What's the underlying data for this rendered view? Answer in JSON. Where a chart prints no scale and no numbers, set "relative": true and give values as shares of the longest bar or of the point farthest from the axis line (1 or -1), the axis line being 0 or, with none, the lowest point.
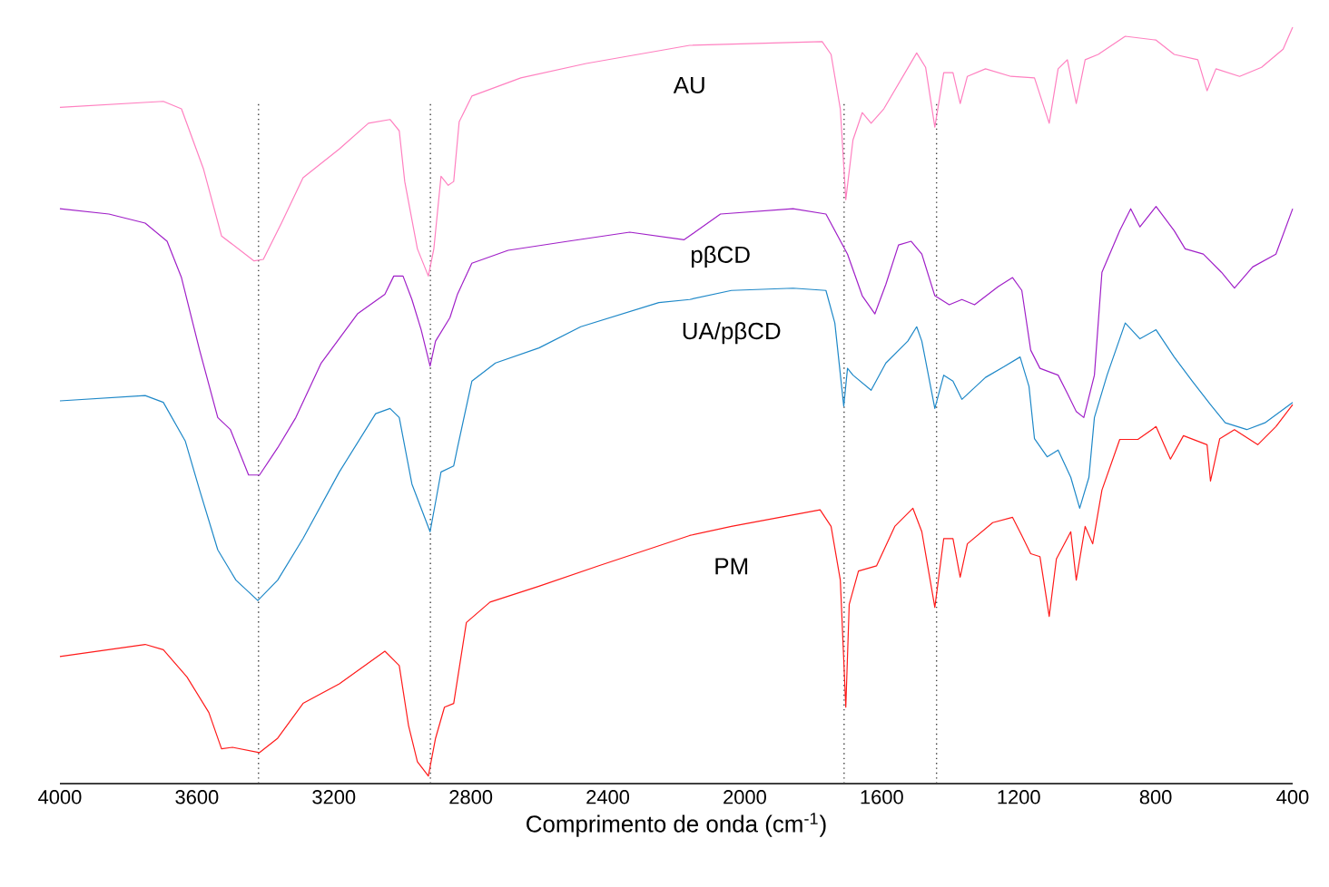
{
  "chart_data": {
    "type": "line",
    "relative": true,
    "xlabel": "Comprimento de onda (cm$^{-1}$)",
    "xlim": [
      4000,
      400
    ],
    "xticks": [
      4000,
      3600,
      3200,
      2800,
      2400,
      2000,
      1600,
      1200,
      800,
      400
    ],
    "grid": false,
    "legend": false,
    "marker": "none",
    "line_style": "solid",
    "ref_lines": [
      {
        "axis": "x",
        "value": 3420,
        "color": "#404040",
        "line_style": "dotted"
      },
      {
        "axis": "x",
        "value": 2918,
        "color": "#404040",
        "line_style": "dotted"
      },
      {
        "axis": "x",
        "value": 1710,
        "color": "#404040",
        "line_style": "dotted"
      },
      {
        "axis": "x",
        "value": 1440,
        "color": "#404040",
        "line_style": "dotted"
      }
    ],
    "series": [
      {
        "name": "AU",
        "color": "#ff80c0",
        "x": [
          4000,
          3698,
          3645,
          3581,
          3528,
          3433,
          3406,
          3353,
          3290,
          3184,
          3099,
          3036,
          3009,
          2993,
          2956,
          2924,
          2908,
          2887,
          2866,
          2850,
          2834,
          2797,
          2654,
          2463,
          2161,
          1774,
          1748,
          1721,
          1705,
          1684,
          1657,
          1631,
          1594,
          1498,
          1472,
          1445,
          1419,
          1392,
          1371,
          1350,
          1297,
          1223,
          1154,
          1111,
          1085,
          1058,
          1032,
          1006,
          968,
          889,
          799,
          746,
          677,
          650,
          624,
          555,
          491,
          428,
          400
        ],
        "values": [
          0.894,
          0.902,
          0.892,
          0.813,
          0.724,
          0.691,
          0.693,
          0.741,
          0.801,
          0.839,
          0.873,
          0.878,
          0.863,
          0.796,
          0.707,
          0.671,
          0.707,
          0.803,
          0.791,
          0.796,
          0.875,
          0.909,
          0.933,
          0.952,
          0.976,
          0.981,
          0.964,
          0.892,
          0.772,
          0.851,
          0.887,
          0.873,
          0.892,
          0.966,
          0.947,
          0.868,
          0.94,
          0.94,
          0.899,
          0.935,
          0.945,
          0.935,
          0.933,
          0.873,
          0.945,
          0.957,
          0.899,
          0.957,
          0.964,
          0.988,
          0.983,
          0.964,
          0.957,
          0.916,
          0.945,
          0.935,
          0.947,
          0.971,
          1.0
        ]
      },
      {
        "name": "pβCD",
        "color": "#a020c8",
        "x": [
          4000,
          3857,
          3751,
          3687,
          3645,
          3592,
          3539,
          3502,
          3449,
          3417,
          3364,
          3311,
          3237,
          3131,
          3051,
          3025,
          2998,
          2972,
          2945,
          2919,
          2903,
          2861,
          2839,
          2797,
          2691,
          2516,
          2336,
          2177,
          2071,
          1859,
          1763,
          1700,
          1657,
          1620,
          1588,
          1551,
          1514,
          1483,
          1445,
          1403,
          1366,
          1329,
          1260,
          1218,
          1191,
          1165,
          1138,
          1085,
          1058,
          1032,
          1010,
          979,
          957,
          905,
          873,
          846,
          799,
          746,
          714,
          661,
          608,
          570,
          517,
          449,
          400
        ],
        "values": [
          0.76,
          0.753,
          0.741,
          0.717,
          0.669,
          0.573,
          0.484,
          0.468,
          0.408,
          0.408,
          0.444,
          0.484,
          0.556,
          0.621,
          0.647,
          0.671,
          0.671,
          0.64,
          0.6,
          0.552,
          0.585,
          0.616,
          0.647,
          0.688,
          0.705,
          0.717,
          0.729,
          0.719,
          0.753,
          0.76,
          0.753,
          0.7,
          0.645,
          0.621,
          0.66,
          0.712,
          0.717,
          0.7,
          0.645,
          0.633,
          0.64,
          0.633,
          0.657,
          0.669,
          0.652,
          0.573,
          0.549,
          0.54,
          0.516,
          0.492,
          0.484,
          0.54,
          0.676,
          0.731,
          0.76,
          0.736,
          0.763,
          0.731,
          0.707,
          0.7,
          0.676,
          0.655,
          0.683,
          0.7,
          0.76
        ]
      },
      {
        "name": "UA/pβCD",
        "color": "#1e88c8",
        "x": [
          4000,
          3751,
          3698,
          3634,
          3592,
          3539,
          3486,
          3422,
          3364,
          3290,
          3184,
          3078,
          3036,
          3009,
          2972,
          2945,
          2919,
          2903,
          2887,
          2850,
          2839,
          2797,
          2728,
          2601,
          2479,
          2251,
          2161,
          2039,
          1859,
          1763,
          1737,
          1711,
          1700,
          1684,
          1631,
          1588,
          1524,
          1498,
          1483,
          1445,
          1419,
          1392,
          1366,
          1297,
          1244,
          1196,
          1170,
          1154,
          1117,
          1085,
          1048,
          1022,
          995,
          979,
          942,
          889,
          846,
          799,
          746,
          693,
          640,
          597,
          534,
          481,
          400
        ],
        "values": [
          0.506,
          0.513,
          0.504,
          0.453,
          0.388,
          0.309,
          0.269,
          0.242,
          0.269,
          0.324,
          0.412,
          0.489,
          0.496,
          0.484,
          0.396,
          0.364,
          0.333,
          0.372,
          0.412,
          0.42,
          0.444,
          0.532,
          0.556,
          0.576,
          0.604,
          0.636,
          0.64,
          0.652,
          0.655,
          0.652,
          0.609,
          0.499,
          0.549,
          0.54,
          0.52,
          0.556,
          0.585,
          0.604,
          0.585,
          0.496,
          0.54,
          0.532,
          0.508,
          0.537,
          0.551,
          0.564,
          0.525,
          0.456,
          0.432,
          0.441,
          0.405,
          0.364,
          0.405,
          0.484,
          0.54,
          0.609,
          0.588,
          0.6,
          0.564,
          0.532,
          0.501,
          0.477,
          0.468,
          0.477,
          0.504
        ]
      },
      {
        "name": "PM",
        "color": "#ff1a1a",
        "x": [
          4000,
          3751,
          3698,
          3629,
          3565,
          3528,
          3496,
          3417,
          3364,
          3290,
          3184,
          3051,
          3009,
          2982,
          2956,
          2924,
          2903,
          2877,
          2850,
          2813,
          2744,
          2601,
          2426,
          2161,
          2039,
          1780,
          1748,
          1721,
          1705,
          1695,
          1668,
          1615,
          1562,
          1509,
          1483,
          1445,
          1419,
          1392,
          1371,
          1350,
          1276,
          1218,
          1191,
          1165,
          1138,
          1111,
          1090,
          1048,
          1032,
          1006,
          984,
          957,
          905,
          852,
          799,
          757,
          719,
          650,
          640,
          613,
          570,
          502,
          449,
          400
        ],
        "values": [
          0.168,
          0.184,
          0.177,
          0.141,
          0.094,
          0.046,
          0.048,
          0.041,
          0.06,
          0.106,
          0.132,
          0.175,
          0.156,
          0.077,
          0.029,
          0.01,
          0.06,
          0.101,
          0.106,
          0.213,
          0.24,
          0.261,
          0.288,
          0.328,
          0.34,
          0.362,
          0.34,
          0.269,
          0.101,
          0.237,
          0.281,
          0.288,
          0.34,
          0.364,
          0.333,
          0.233,
          0.324,
          0.324,
          0.273,
          0.317,
          0.345,
          0.352,
          0.328,
          0.304,
          0.3,
          0.221,
          0.297,
          0.333,
          0.269,
          0.34,
          0.317,
          0.388,
          0.455,
          0.455,
          0.472,
          0.429,
          0.46,
          0.448,
          0.4,
          0.456,
          0.468,
          0.448,
          0.472,
          0.501
        ]
      }
    ]
  }
}
